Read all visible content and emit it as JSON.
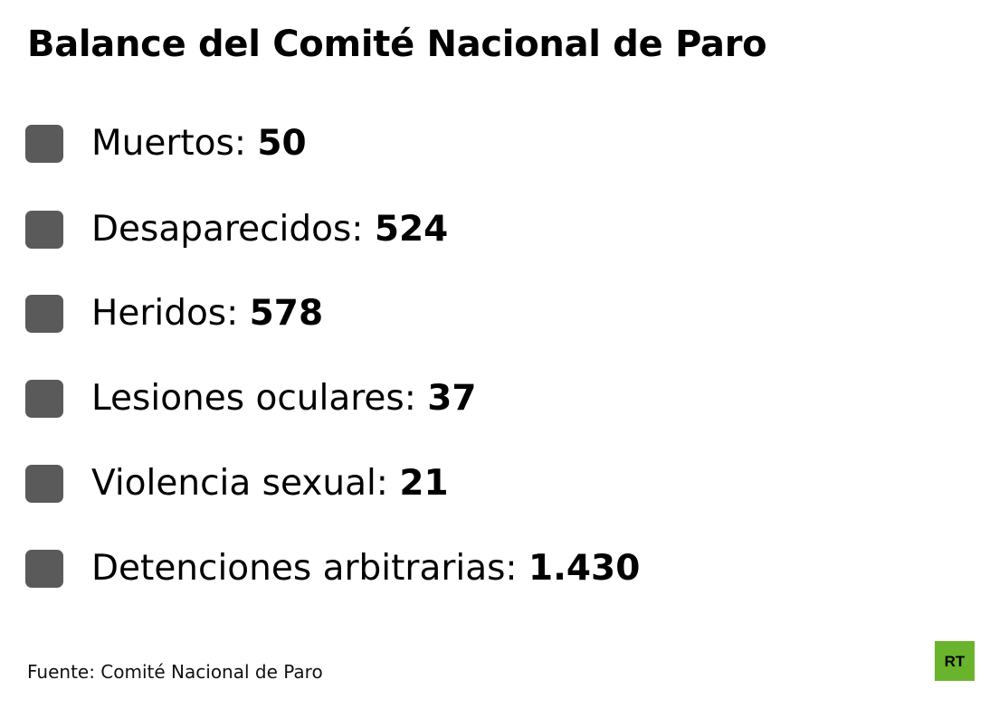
{
  "title": "Balance del Comité Nacional de Paro",
  "items": [
    {
      "label": "Muertos: ",
      "value": "50"
    },
    {
      "label": "Desaparecidos: ",
      "value": "524"
    },
    {
      "label": "Heridos: ",
      "value": "578"
    },
    {
      "label": "Lesiones oculares: ",
      "value": "37"
    },
    {
      "label": "Violencia sexual: ",
      "value": "21"
    },
    {
      "label": "Detenciones arbitrarias: ",
      "value": "1.430"
    }
  ],
  "source": "Fuente: Comité Nacional de Paro",
  "logo": {
    "text": "RT",
    "color": "#6ab42d"
  },
  "colors": {
    "bullet": "#5a5a5a",
    "text": "#000000"
  }
}
